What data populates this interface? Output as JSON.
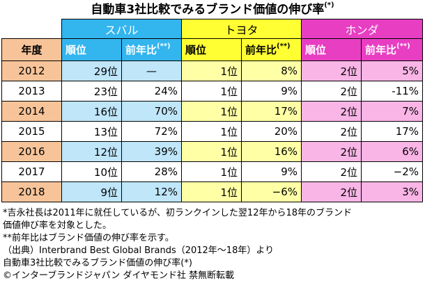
{
  "title": {
    "text": "自動車3社比較でみるブランド価値の伸び率",
    "sup": "(*)"
  },
  "table": {
    "year_header": "年度",
    "brands": [
      "スバル",
      "トヨタ",
      "ホンダ"
    ],
    "rank_label": "順位",
    "yoy_label": "前年比",
    "yoy_sup": "(**)",
    "rows": [
      {
        "year": "2012",
        "subaru_rank": "29位",
        "subaru_yoy": "—",
        "toyota_rank": "1位",
        "toyota_yoy": "8%",
        "honda_rank": "2位",
        "honda_yoy": "5%"
      },
      {
        "year": "2013",
        "subaru_rank": "23位",
        "subaru_yoy": "24%",
        "toyota_rank": "1位",
        "toyota_yoy": "9%",
        "honda_rank": "2位",
        "honda_yoy": "-11%"
      },
      {
        "year": "2014",
        "subaru_rank": "16位",
        "subaru_yoy": "70%",
        "toyota_rank": "1位",
        "toyota_yoy": "17%",
        "honda_rank": "2位",
        "honda_yoy": "7%"
      },
      {
        "year": "2015",
        "subaru_rank": "13位",
        "subaru_yoy": "72%",
        "toyota_rank": "1位",
        "toyota_yoy": "20%",
        "honda_rank": "2位",
        "honda_yoy": "17%"
      },
      {
        "year": "2016",
        "subaru_rank": "12位",
        "subaru_yoy": "39%",
        "toyota_rank": "1位",
        "toyota_yoy": "16%",
        "honda_rank": "2位",
        "honda_yoy": "6%"
      },
      {
        "year": "2017",
        "subaru_rank": "10位",
        "subaru_yoy": "28%",
        "toyota_rank": "1位",
        "toyota_yoy": "9%",
        "honda_rank": "2位",
        "honda_yoy": "−2%"
      },
      {
        "year": "2018",
        "subaru_rank": "9位",
        "subaru_yoy": "12%",
        "toyota_rank": "1位",
        "toyota_yoy": "−6%",
        "honda_rank": "2位",
        "honda_yoy": "3%"
      }
    ]
  },
  "notes": {
    "note1_line1": "*吉永社長は2011年に就任しているが、初ランクインした翌12年から18年のブランド",
    "note1_line2": "価値伸び率を対象とした。",
    "note2": "**前年比はブランド価値の伸び率を示す。",
    "source": "（出典）Interbrand Best Global Brands（2012年〜18年）より",
    "caption": "自動車3社比較でみるブランド価値の伸び率(*)",
    "copyright": "©インターブランドジャパン ダイヤモンド社 禁無断転載"
  },
  "colors": {
    "year_header": "#f7c499",
    "subaru": "#33b5ee",
    "subaru_light": "#bfe6f9",
    "toyota": "#ffff33",
    "toyota_light": "#ffffa6",
    "honda": "#e83ec2",
    "honda_light": "#f9b5e6"
  }
}
